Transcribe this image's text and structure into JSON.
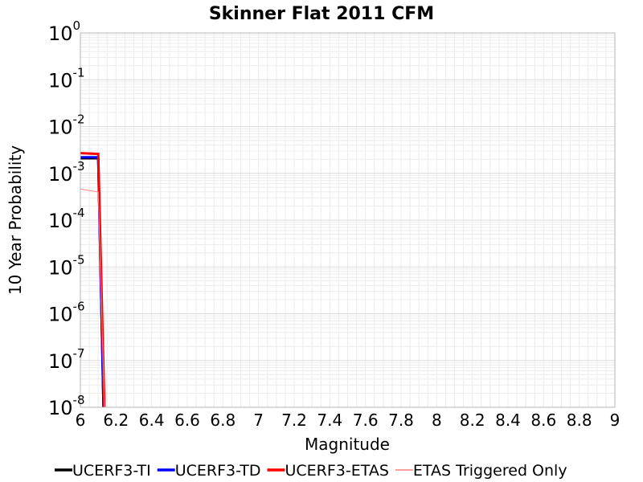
{
  "chart_data": {
    "type": "line",
    "title": "Skinner Flat 2011 CFM",
    "xlabel": "Magnitude",
    "ylabel": "10 Year Probability",
    "xlim": [
      6,
      9
    ],
    "ylim": [
      1e-08,
      1
    ],
    "yscale": "log",
    "grid": true,
    "legend_position": "bottom",
    "x_ticks": [
      "6",
      "6.2",
      "6.4",
      "6.6",
      "6.8",
      "7",
      "7.2",
      "7.4",
      "7.6",
      "7.8",
      "8",
      "8.2",
      "8.4",
      "8.6",
      "8.8",
      "9"
    ],
    "y_ticks": [
      {
        "base": "10",
        "exp": "0"
      },
      {
        "base": "10",
        "exp": "-1"
      },
      {
        "base": "10",
        "exp": "-2"
      },
      {
        "base": "10",
        "exp": "-3"
      },
      {
        "base": "10",
        "exp": "-4"
      },
      {
        "base": "10",
        "exp": "-5"
      },
      {
        "base": "10",
        "exp": "-6"
      },
      {
        "base": "10",
        "exp": "-7"
      },
      {
        "base": "10",
        "exp": "-8"
      }
    ],
    "series": [
      {
        "name": "UCERF3-TI",
        "color": "#000000",
        "width": 3,
        "points": [
          [
            6.0,
            0.0021
          ],
          [
            6.1,
            0.0021
          ],
          [
            6.13,
            1e-08
          ]
        ]
      },
      {
        "name": "UCERF3-TD",
        "color": "#0000ff",
        "width": 3,
        "points": [
          [
            6.0,
            0.0022
          ],
          [
            6.1,
            0.0022
          ],
          [
            6.13,
            1e-08
          ]
        ]
      },
      {
        "name": "UCERF3-ETAS",
        "color": "#ff0000",
        "width": 3,
        "points": [
          [
            6.0,
            0.0027
          ],
          [
            6.1,
            0.0026
          ],
          [
            6.135,
            1e-08
          ]
        ]
      },
      {
        "name": "ETAS Triggered Only",
        "color": "#ff8080",
        "width": 1,
        "points": [
          [
            6.0,
            0.00046
          ],
          [
            6.1,
            0.0004
          ],
          [
            6.135,
            1e-08
          ]
        ]
      }
    ]
  }
}
